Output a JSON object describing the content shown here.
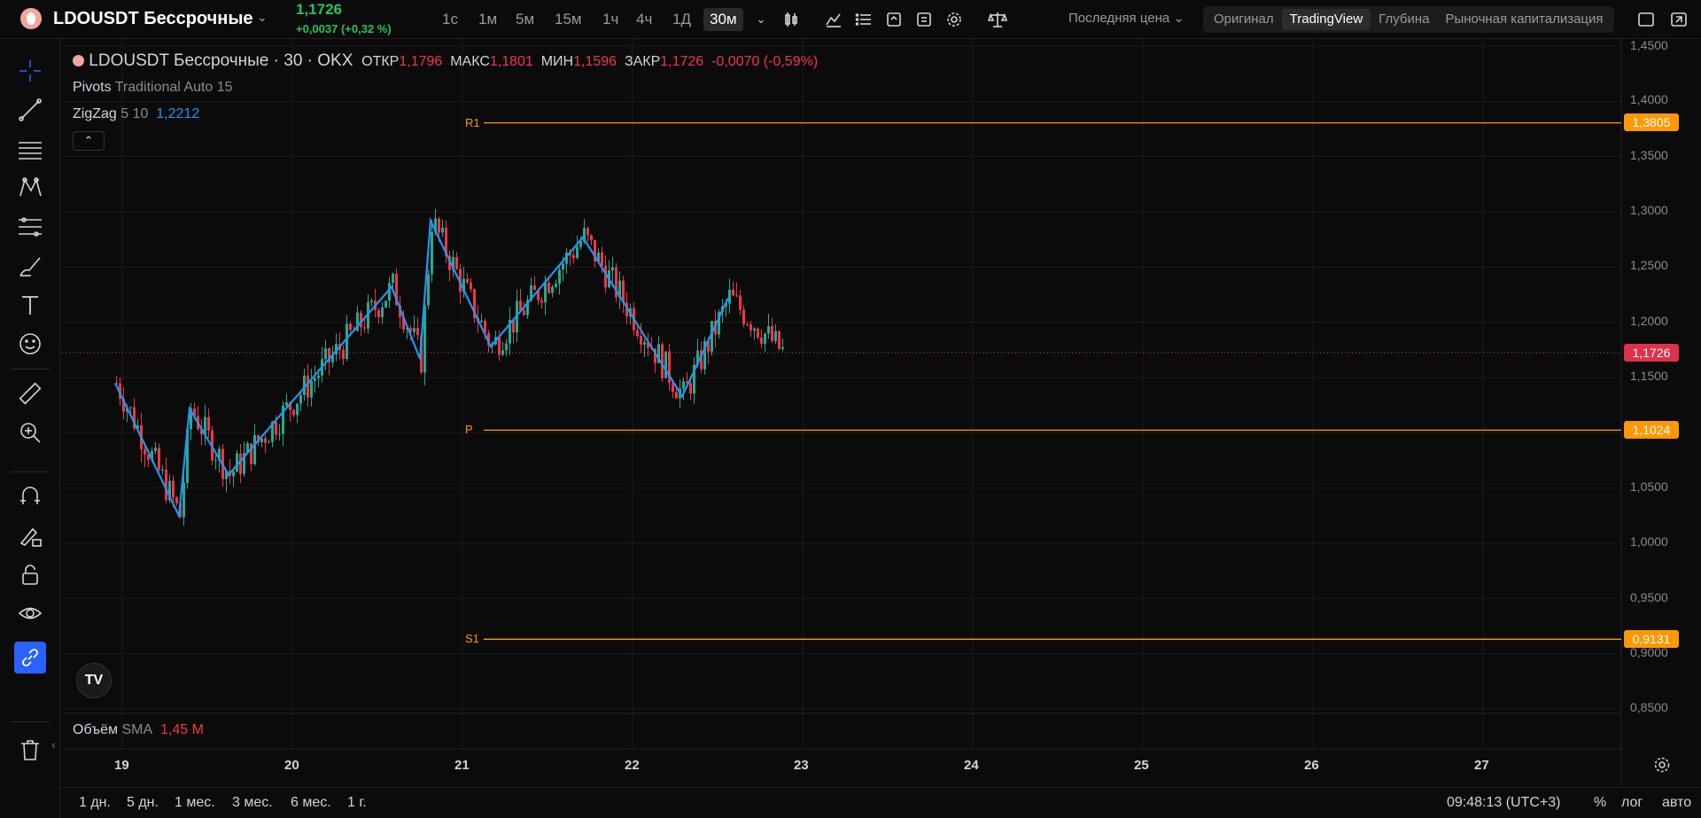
{
  "header": {
    "symbol": "LDOUSDT Бессрочные",
    "price": "1,1726",
    "change": "+0,0037 (+0,32 %)",
    "timeframes": [
      "1с",
      "1м",
      "5м",
      "15м",
      "1ч",
      "4ч",
      "1Д",
      "30м"
    ],
    "active_timeframe": "30м",
    "price_type": "Последняя цена",
    "views": [
      "Оригинал",
      "TradingView",
      "Глубина",
      "Рыночная капитализация"
    ],
    "active_view": "TradingView"
  },
  "legend": {
    "title": "LDOUSDT Бессрочные · 30 · OKX",
    "open_label": "ОТКР",
    "open": "1,1796",
    "high_label": "МАКС",
    "high": "1,1801",
    "low_label": "МИН",
    "low": "1,1596",
    "close_label": "ЗАКР",
    "close": "1,1726",
    "change": "-0,0070 (-0,59%)",
    "pivots_name": "Pivots",
    "pivots_params": "Traditional Auto 15",
    "zigzag_name": "ZigZag",
    "zigzag_params": "5 10",
    "zigzag_value": "1,2212",
    "volume_name": "Объём",
    "volume_params": "SMA",
    "volume_value": "1,45 M"
  },
  "pivots": {
    "r1_label": "R1",
    "r1": "1,3805",
    "p_label": "P",
    "p": "1,1024",
    "s1_label": "S1",
    "s1": "0,9131"
  },
  "current_price_badge": "1,1726",
  "y_axis_labels": [
    "1,4500",
    "1,4000",
    "1,3500",
    "1,3000",
    "1,2500",
    "1,2000",
    "1,1500",
    "1,0500",
    "1,0000",
    "0,9500",
    "0,9000",
    "0,8500"
  ],
  "x_axis_labels": [
    "19",
    "20",
    "21",
    "22",
    "23",
    "24",
    "25",
    "26",
    "27"
  ],
  "bottom": {
    "ranges": [
      "1 дн.",
      "5 дн.",
      "1 мес.",
      "3 мес.",
      "6 мес.",
      "1 г."
    ],
    "clock": "09:48:13 (UTC+3)",
    "percent": "%",
    "log": "лог",
    "auto": "авто"
  },
  "colors": {
    "up": "#22ab94",
    "down": "#f23645",
    "zigzag": "#2196f3",
    "pivot": "#ff9800",
    "price_badge": "#e0314b",
    "accent": "#2962ff"
  },
  "chart_data": {
    "type": "candlestick",
    "y_axis_range": [
      0.85,
      1.45
    ],
    "zigzag": [
      {
        "x": "18 23:00",
        "y": 1.145
      },
      {
        "x": "19 08:00",
        "y": 1.025
      },
      {
        "x": "19 09:30",
        "y": 1.122
      },
      {
        "x": "19 15:00",
        "y": 1.062
      },
      {
        "x": "20 14:00",
        "y": 1.232
      },
      {
        "x": "20 18:00",
        "y": 1.167
      },
      {
        "x": "20 19:30",
        "y": 1.292
      },
      {
        "x": "21 04:00",
        "y": 1.178
      },
      {
        "x": "21 17:00",
        "y": 1.277
      },
      {
        "x": "22 07:00",
        "y": 1.133
      },
      {
        "x": "22 13:30",
        "y": 1.222
      }
    ],
    "pivots": {
      "R1": 1.3805,
      "P": 1.1024,
      "S1": 0.9131
    },
    "last_price": 1.1726
  }
}
